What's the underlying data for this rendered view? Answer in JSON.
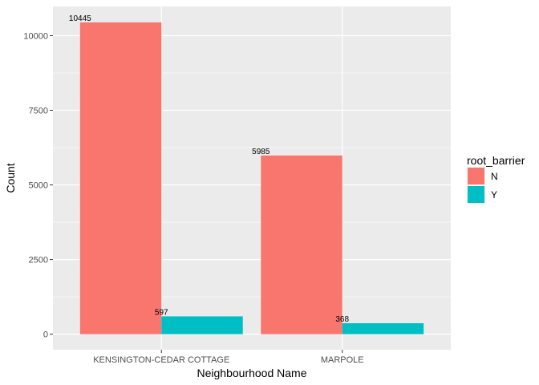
{
  "chart_data": {
    "type": "bar",
    "categories": [
      "KENSINGTON-CEDAR COTTAGE",
      "MARPOLE"
    ],
    "series": [
      {
        "name": "N",
        "color": "#F8766D",
        "values": [
          10445,
          5985
        ]
      },
      {
        "name": "Y",
        "color": "#00BFC4",
        "values": [
          597,
          368
        ]
      }
    ],
    "xlabel": "Neighbourhood Name",
    "ylabel": "Count",
    "ylim": [
      -520,
      10980
    ],
    "yticks": [
      0,
      2500,
      5000,
      7500,
      10000
    ],
    "ytick_labels": [
      "0",
      "2500",
      "5000",
      "7500",
      "10000"
    ],
    "legend": {
      "title": "root_barrier",
      "position": "right"
    },
    "grid": true,
    "panel_background": "#EBEBEB",
    "grid_color": "#FFFFFF"
  }
}
